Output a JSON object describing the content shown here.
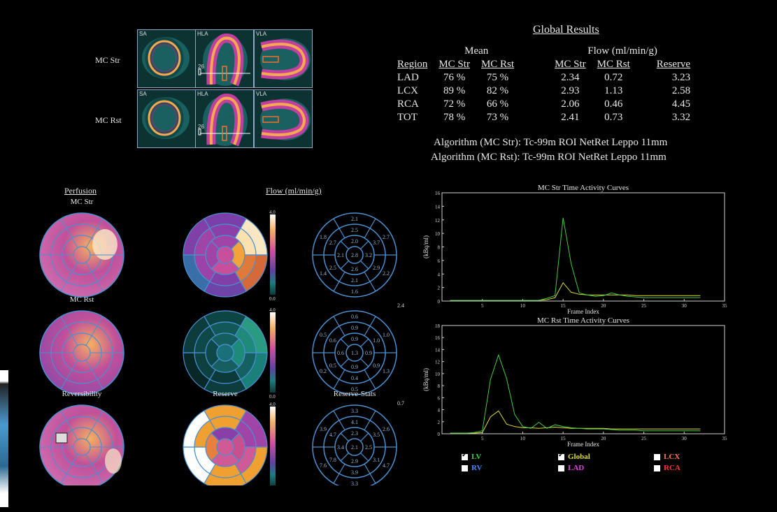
{
  "colors": {
    "background": "#000000",
    "chart_frame": "#d0d0d0",
    "lv": "#44cc44",
    "global": "#dddd33",
    "rv": "#4488ff",
    "lad": "#dd44dd",
    "lcx": "#ff7755",
    "rca": "#ff3333",
    "polar_outline": "#4a90d0"
  },
  "slices": {
    "rows": [
      {
        "label": "MC Str"
      },
      {
        "label": "MC Rst"
      }
    ],
    "tags": [
      "SA",
      "HLA",
      "VLA"
    ],
    "hla_marker": "26"
  },
  "global_results": {
    "title": "Global Results",
    "group_mean": "Mean",
    "group_flow": "Flow (ml/min/g)",
    "headers": [
      "Region",
      "MC Str",
      "MC Rst",
      "MC Str",
      "MC Rst",
      "Reserve"
    ],
    "rows": [
      [
        "LAD",
        "76 %",
        "75 %",
        "2.34",
        "0.72",
        "3.23"
      ],
      [
        "LCX",
        "89 %",
        "82 %",
        "2.93",
        "1.13",
        "2.58"
      ],
      [
        "RCA",
        "72 %",
        "66 %",
        "2.06",
        "0.46",
        "4.45"
      ],
      [
        "TOT",
        "78 %",
        "73 %",
        "2.41",
        "0.73",
        "3.32"
      ]
    ],
    "algorithms": [
      {
        "label": "Algorithm (MC Str):",
        "value": "Tc-99m ROI NetRet Leppo 11mm"
      },
      {
        "label": "Algorithm (MC Rst):",
        "value": "Tc-99m ROI NetRet Leppo 11mm"
      }
    ]
  },
  "polar": {
    "perfusion_header": "Perfusion",
    "flow_header": "Flow (ml/min/g)",
    "rows": [
      {
        "perf_title": "MC Str",
        "flow_title": "",
        "stats_title": "",
        "scale_max": "4.0",
        "scale_min": "0.0",
        "total": "2.4",
        "values": {
          "apex": "2.8",
          "ring1": [
            "2.0",
            "3.2",
            "2.6",
            "2.1"
          ],
          "ring2": [
            "2.5",
            "3.7",
            "2.9",
            "2.1",
            "2.5",
            "2.7"
          ],
          "ring3": [
            "2.1",
            "2.7",
            "2.2",
            "1.6",
            "1.4",
            "1.8"
          ]
        },
        "colors": {
          "apex": "#c84f9c",
          "ring1": [
            "#a044a8",
            "#f4a23a",
            "#c84f9c",
            "#a044a8"
          ],
          "ring2": [
            "#8c3fa8",
            "#fde2b0",
            "#e07a3a",
            "#8040a8",
            "#9b43a8",
            "#a044a8"
          ],
          "ring3": [
            "#7a3fa8",
            "#fbe7c4",
            "#d46a3a",
            "#6f44a8",
            "#3a6ea8",
            "#8040a8"
          ]
        }
      },
      {
        "perf_title": "MC Rst",
        "flow_title": "",
        "stats_title": "",
        "scale_max": "4.0",
        "scale_min": "0.0",
        "total": "0.7",
        "values": {
          "apex": "1.3",
          "ring1": [
            "0.9",
            "0.9",
            "0.9",
            "0.6"
          ],
          "ring2": [
            "0.9",
            "1.0",
            "0.9",
            "0.4",
            "0.5",
            "0.6"
          ],
          "ring3": [
            "0.6",
            "1.0",
            "1.3",
            "0.5",
            "0.2",
            "0.5"
          ]
        },
        "colors": {
          "apex": "#1a7078",
          "ring1": [
            "#145e5e",
            "#1d8a7a",
            "#165e60",
            "#0f4848"
          ],
          "ring2": [
            "#135858",
            "#1f8a7a",
            "#156060",
            "#0c3a3a",
            "#0e4040",
            "#0f4848"
          ],
          "ring3": [
            "#0d4444",
            "#2a9a80",
            "#1c807a",
            "#0c3c3c",
            "#082828",
            "#0c3c3c"
          ]
        }
      },
      {
        "perf_title": "Reversibility",
        "flow_title": "Reserve",
        "stats_title": "Reserve-Stats",
        "scale_max": "4.0",
        "scale_min": "0.0",
        "total": "3.3",
        "values": {
          "apex": "2.1",
          "ring1": [
            "2.3",
            "2.5",
            "2.9",
            "3.4"
          ],
          "ring2": [
            "4.1",
            "3.5",
            "3.1",
            "3.9",
            "7.8",
            "4.7"
          ],
          "ring3": [
            "3.3",
            "2.6",
            "4.7",
            "3.3",
            "7.6",
            "3.9"
          ]
        },
        "colors": {
          "apex": "#d05a96",
          "ring1": [
            "#8a3ea8",
            "#c8508e",
            "#d05a96",
            "#e6803c"
          ],
          "ring2": [
            "#f0a030",
            "#a044a8",
            "#d05a96",
            "#f0a030",
            "#ffffff",
            "#f0a030"
          ],
          "ring3": [
            "#f0a030",
            "#a044a8",
            "#f0a030",
            "#f0a030",
            "#ffffff",
            "#ffffff"
          ]
        }
      }
    ]
  },
  "tac": {
    "legend": [
      {
        "label": "LV",
        "checked": true,
        "color": "#44cc44"
      },
      {
        "label": "Global",
        "checked": true,
        "color": "#dddd33"
      },
      {
        "label": "LCX",
        "checked": false,
        "color": "#ff7755"
      },
      {
        "label": "RV",
        "checked": false,
        "color": "#4488ff"
      },
      {
        "label": "LAD",
        "checked": false,
        "color": "#dd44dd"
      },
      {
        "label": "RCA",
        "checked": false,
        "color": "#ff3333"
      }
    ]
  },
  "chart_data": [
    {
      "type": "line",
      "title": "MC Str Time Activity Curves",
      "xlabel": "Frame Index",
      "ylabel": "(kBq/ml)",
      "xlim": [
        0,
        35
      ],
      "ylim": [
        0,
        16
      ],
      "xticks": [
        5,
        10,
        15,
        20,
        25,
        30,
        35
      ],
      "yticks": [
        0,
        2,
        4,
        6,
        8,
        10,
        12,
        14,
        16
      ],
      "x": [
        1,
        2,
        3,
        4,
        5,
        6,
        7,
        8,
        9,
        10,
        11,
        12,
        13,
        14,
        15,
        16,
        17,
        18,
        19,
        20,
        21,
        22,
        23,
        24,
        25,
        26,
        27,
        28,
        29,
        30,
        31,
        32
      ],
      "series": [
        {
          "name": "LV",
          "color": "#44cc44",
          "values": [
            0.1,
            0.1,
            0.1,
            0.1,
            0.1,
            0.1,
            0.1,
            0.1,
            0.1,
            0.1,
            0.1,
            0.1,
            0.4,
            0.8,
            12.3,
            5.5,
            1.2,
            0.9,
            0.7,
            0.8,
            1.2,
            0.9,
            0.7,
            0.6,
            0.5,
            0.5,
            0.5,
            0.5,
            0.5,
            0.5,
            0.5,
            0.5
          ]
        },
        {
          "name": "Global",
          "color": "#dddd33",
          "values": [
            0.1,
            0.1,
            0.1,
            0.1,
            0.1,
            0.1,
            0.1,
            0.1,
            0.1,
            0.1,
            0.1,
            0.1,
            0.2,
            0.5,
            2.7,
            1.3,
            1.0,
            0.9,
            0.9,
            0.9,
            0.9,
            0.9,
            0.9,
            0.8,
            0.8,
            0.8,
            0.8,
            0.8,
            0.8,
            0.8,
            0.8,
            0.8
          ]
        }
      ]
    },
    {
      "type": "line",
      "title": "MC Rst Time Activity Curves",
      "xlabel": "Frame Index",
      "ylabel": "(kBq/ml)",
      "xlim": [
        0,
        35
      ],
      "ylim": [
        0,
        18
      ],
      "xticks": [
        5,
        10,
        15,
        20,
        25,
        30,
        35
      ],
      "yticks": [
        0,
        2,
        4,
        6,
        8,
        10,
        12,
        14,
        16,
        18
      ],
      "x": [
        1,
        2,
        3,
        4,
        5,
        6,
        7,
        8,
        9,
        10,
        11,
        12,
        13,
        14,
        15,
        16,
        17,
        18,
        19,
        20,
        21,
        22,
        23,
        24,
        25,
        26,
        27,
        28,
        29,
        30,
        31,
        32
      ],
      "series": [
        {
          "name": "LV",
          "color": "#44cc44",
          "values": [
            0.1,
            0.1,
            0.1,
            0.2,
            0.5,
            9.0,
            13.1,
            9.2,
            3.2,
            1.2,
            0.9,
            1.9,
            0.9,
            1.5,
            1.2,
            1.0,
            0.9,
            0.8,
            0.8,
            0.8,
            0.7,
            0.6,
            0.6,
            0.6,
            0.5,
            0.5,
            0.5,
            0.5,
            0.5,
            0.5,
            0.5,
            0.5
          ]
        },
        {
          "name": "Global",
          "color": "#dddd33",
          "values": [
            0.1,
            0.1,
            0.1,
            0.1,
            0.2,
            2.8,
            3.8,
            1.6,
            1.2,
            1.0,
            1.0,
            0.9,
            1.0,
            1.1,
            1.0,
            0.9,
            0.9,
            0.9,
            0.9,
            0.9,
            0.8,
            0.8,
            0.8,
            0.8,
            0.8,
            0.8,
            0.8,
            0.8,
            0.8,
            0.8,
            0.8,
            0.8
          ]
        }
      ]
    }
  ]
}
